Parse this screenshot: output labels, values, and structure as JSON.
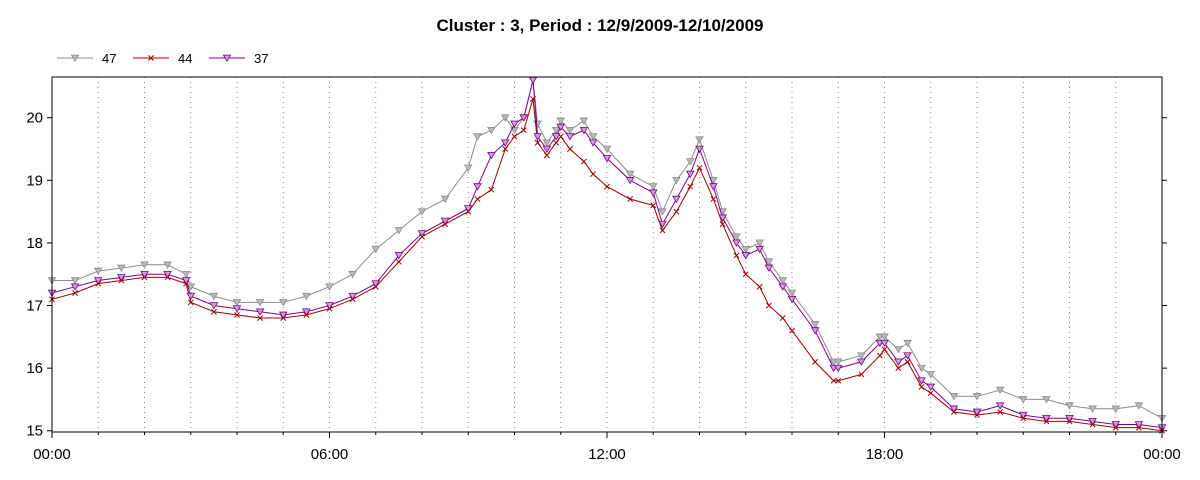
{
  "chart_data": {
    "type": "line",
    "title": "Cluster : 3, Period : 12/9/2009-12/10/2009",
    "xlabel": "",
    "ylabel": "",
    "x_unit": "hours since 00:00 (2009-12-09)",
    "xlim": [
      0,
      24
    ],
    "ylim": [
      14.98,
      20.65
    ],
    "x_ticks": [
      0,
      6,
      12,
      18,
      24
    ],
    "x_tick_labels": [
      "00:00",
      "06:00",
      "12:00",
      "18:00",
      "00:00"
    ],
    "y_ticks": [
      15,
      16,
      17,
      18,
      19,
      20
    ],
    "y_tick_labels": [
      "15",
      "16",
      "17",
      "18",
      "19",
      "20"
    ],
    "grid": "vertical dotted, hourly",
    "legend_position": "top-left",
    "x": [
      0,
      0.5,
      1,
      1.5,
      2,
      2.5,
      2.9,
      3,
      3.5,
      4,
      4.5,
      5,
      5.5,
      6,
      6.5,
      7,
      7.5,
      8,
      8.5,
      9,
      9.2,
      9.5,
      9.8,
      10,
      10.2,
      10.4,
      10.5,
      10.7,
      10.9,
      11,
      11.2,
      11.5,
      11.7,
      12,
      12.5,
      13,
      13.2,
      13.5,
      13.8,
      14,
      14.3,
      14.5,
      14.8,
      15,
      15.3,
      15.5,
      15.8,
      16,
      16.5,
      16.9,
      17,
      17.5,
      17.9,
      18,
      18.3,
      18.5,
      18.8,
      19,
      19.5,
      20,
      20.5,
      21,
      21.5,
      22,
      22.5,
      23,
      23.5,
      24
    ],
    "series": [
      {
        "name": "47",
        "color": "#8c8c8c",
        "marker": "triangle-down",
        "values": [
          17.4,
          17.4,
          17.55,
          17.6,
          17.65,
          17.65,
          17.5,
          17.3,
          17.15,
          17.05,
          17.05,
          17.05,
          17.15,
          17.3,
          17.5,
          17.9,
          18.2,
          18.5,
          18.7,
          19.2,
          19.7,
          19.8,
          20.0,
          19.8,
          20.0,
          20.6,
          19.9,
          19.6,
          19.8,
          19.95,
          19.8,
          19.95,
          19.7,
          19.5,
          19.1,
          18.9,
          18.5,
          19.0,
          19.3,
          19.65,
          19.0,
          18.5,
          18.1,
          17.9,
          18.0,
          17.7,
          17.4,
          17.2,
          16.7,
          16.1,
          16.1,
          16.2,
          16.5,
          16.5,
          16.3,
          16.4,
          16.0,
          15.9,
          15.55,
          15.55,
          15.65,
          15.5,
          15.5,
          15.4,
          15.35,
          15.35,
          15.4,
          15.2
        ]
      },
      {
        "name": "44",
        "color": "#a00000",
        "marker": "x",
        "values": [
          17.1,
          17.2,
          17.35,
          17.4,
          17.45,
          17.45,
          17.35,
          17.05,
          16.9,
          16.85,
          16.8,
          16.8,
          16.85,
          16.95,
          17.1,
          17.3,
          17.7,
          18.1,
          18.3,
          18.5,
          18.7,
          18.85,
          19.5,
          19.7,
          19.8,
          20.3,
          19.6,
          19.4,
          19.6,
          19.7,
          19.5,
          19.3,
          19.1,
          18.9,
          18.7,
          18.6,
          18.2,
          18.5,
          18.9,
          19.2,
          18.7,
          18.3,
          17.8,
          17.5,
          17.3,
          17.0,
          16.8,
          16.6,
          16.1,
          15.8,
          15.8,
          15.9,
          16.2,
          16.3,
          16.0,
          16.1,
          15.7,
          15.6,
          15.3,
          15.25,
          15.3,
          15.2,
          15.15,
          15.15,
          15.1,
          15.05,
          15.05,
          15.0
        ]
      },
      {
        "name": "37",
        "color": "#800080",
        "marker": "triangle-down",
        "values": [
          17.2,
          17.3,
          17.4,
          17.45,
          17.5,
          17.5,
          17.4,
          17.15,
          17.0,
          16.95,
          16.9,
          16.85,
          16.9,
          17.0,
          17.15,
          17.35,
          17.8,
          18.15,
          18.35,
          18.55,
          18.9,
          19.4,
          19.6,
          19.9,
          20.0,
          20.6,
          19.7,
          19.5,
          19.7,
          19.85,
          19.7,
          19.8,
          19.6,
          19.35,
          19.0,
          18.8,
          18.3,
          18.7,
          19.1,
          19.5,
          18.9,
          18.4,
          18.0,
          17.8,
          17.9,
          17.6,
          17.3,
          17.1,
          16.6,
          16.0,
          16.0,
          16.1,
          16.4,
          16.4,
          16.1,
          16.2,
          15.8,
          15.7,
          15.35,
          15.3,
          15.4,
          15.25,
          15.2,
          15.2,
          15.15,
          15.1,
          15.1,
          15.05
        ]
      }
    ]
  }
}
